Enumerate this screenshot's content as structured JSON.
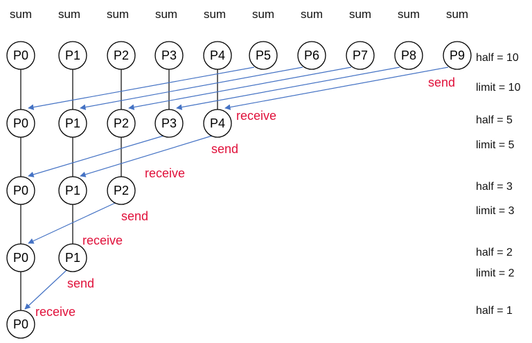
{
  "top_labels": [
    "sum",
    "sum",
    "sum",
    "sum",
    "sum",
    "sum",
    "sum",
    "sum",
    "sum",
    "sum"
  ],
  "levels": [
    {
      "nodes": [
        "P0",
        "P1",
        "P2",
        "P3",
        "P4",
        "P5",
        "P6",
        "P7",
        "P8",
        "P9"
      ],
      "half": "half = 10",
      "limit": "limit = 10"
    },
    {
      "nodes": [
        "P0",
        "P1",
        "P2",
        "P3",
        "P4"
      ],
      "half": "half = 5",
      "limit": "limit = 5"
    },
    {
      "nodes": [
        "P0",
        "P1",
        "P2"
      ],
      "half": "half = 3",
      "limit": "limit = 3"
    },
    {
      "nodes": [
        "P0",
        "P1"
      ],
      "half": "half = 2",
      "limit": "limit = 2"
    },
    {
      "nodes": [
        "P0"
      ],
      "half": "half = 1"
    }
  ],
  "annotations": {
    "send_1": "send",
    "receive_1": "receive",
    "send_2": "send",
    "receive_2": "receive",
    "send_3": "send",
    "receive_3": "receive",
    "send_4": "send",
    "receive_4": "receive"
  },
  "colors": {
    "arrow": "#4472c4",
    "annotation": "#e0103a",
    "node_stroke": "#000000"
  }
}
